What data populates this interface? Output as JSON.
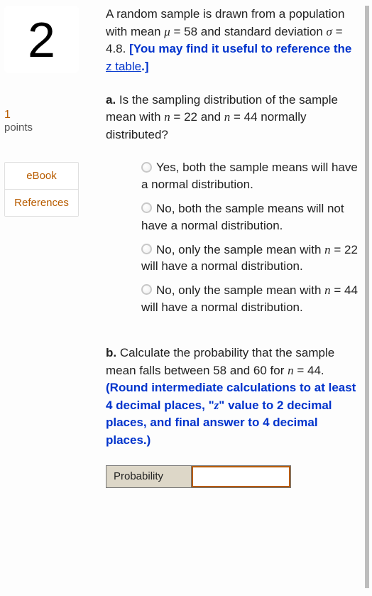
{
  "sidebar": {
    "question_number": "2",
    "points_value": "1",
    "points_label": "points",
    "links": {
      "ebook": "eBook",
      "references": "References"
    }
  },
  "prompt": {
    "lead_text": "A random sample is drawn from a population with mean ",
    "mu_sym": "μ",
    "mu_eq": " = 58 and standard deviation ",
    "sigma_sym": "σ",
    "sigma_eq": " = 4.8. ",
    "hint_open": "[You may find it useful to reference the ",
    "hint_link": "z table",
    "hint_close": ".]"
  },
  "part_a": {
    "label": "a.",
    "text1": " Is the sampling distribution of the sample mean with ",
    "n_sym": "n",
    "n1": " = 22 and ",
    "n2": " = 44 normally distributed?",
    "options": {
      "o1a": "Yes, both the sample means will have a normal distribution.",
      "o2a": "No, both the sample means will not have a normal distribution.",
      "o3a": "No, only the sample mean with ",
      "o3b": " = 22 will have a normal distribution.",
      "o4a": "No, only the sample mean with ",
      "o4b": " = 44 will have a normal distribution."
    }
  },
  "part_b": {
    "label": "b.",
    "text1": " Calculate the probability that the sample mean falls between 58 and 60 for  ",
    "n_sym": "n",
    "n_val": " = 44. ",
    "hint": "(Round intermediate calculations to at least 4 decimal places, \"",
    "z_sym": "z",
    "hint2": "\" value to 2 decimal places, and final answer to 4 decimal places.)"
  },
  "answer": {
    "label": "Probability",
    "value": ""
  },
  "colors": {
    "accent": "#b85c00",
    "blue": "#0033cc",
    "scrollbar": "#bdbdbd",
    "table_header_bg": "#ddd7c8"
  }
}
